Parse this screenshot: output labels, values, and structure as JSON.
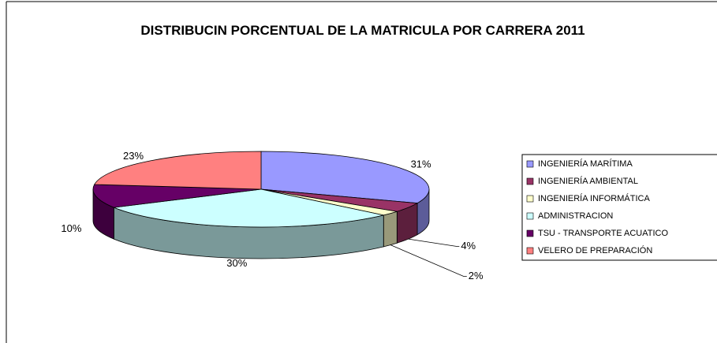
{
  "chart_data": {
    "type": "pie3d",
    "title": "DISTRIBUCIN PORCENTUAL DE LA MATRICULA POR CARRERA 2011",
    "categories": [
      "INGENIERÍA MARÍTIMA",
      "INGENIERÍA AMBIENTAL",
      "INGENIERÍA INFORMÁTICA",
      "ADMINISTRACION",
      "TSU - TRANSPORTE ACUATICO",
      "VELERO DE PREPARACIÓN"
    ],
    "values": [
      31,
      4,
      2,
      30,
      10,
      23
    ],
    "value_labels": [
      "31%",
      "4%",
      "2%",
      "30%",
      "10%",
      "23%"
    ],
    "colors": [
      "#9999ff",
      "#993366",
      "#ffffcc",
      "#ccffff",
      "#660066",
      "#ff8080"
    ],
    "legend": "right"
  }
}
